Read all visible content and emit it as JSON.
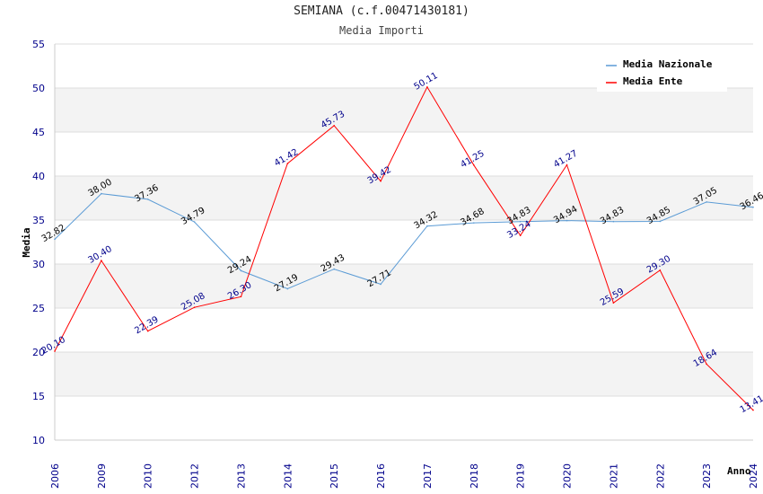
{
  "chart_data": {
    "type": "line",
    "title": "SEMIANA (c.f.00471430181)",
    "subtitle": "Media Importi",
    "xlabel": "Anno",
    "ylabel": "Media",
    "ylim": [
      10,
      55
    ],
    "yticks": [
      10,
      15,
      20,
      25,
      30,
      35,
      40,
      45,
      50,
      55
    ],
    "grid": true,
    "legend_position": "top-right",
    "categories": [
      "2006",
      "2009",
      "2010",
      "2012",
      "2013",
      "2014",
      "2015",
      "2016",
      "2017",
      "2018",
      "2019",
      "2020",
      "2021",
      "2022",
      "2023",
      "2024"
    ],
    "series": [
      {
        "name": "Media Nazionale",
        "color": "#5b9bd5",
        "values": [
          32.82,
          38.0,
          37.36,
          34.79,
          29.24,
          27.19,
          29.43,
          27.71,
          34.32,
          34.68,
          34.83,
          34.94,
          34.83,
          34.85,
          37.05,
          36.46
        ],
        "labels": [
          "32.82",
          "38.00",
          "37.36",
          "34.79",
          "29.24",
          "27.19",
          "29.43",
          "27.71",
          "34.32",
          "34.68",
          "34.83",
          "34.94",
          "34.83",
          "34.85",
          "37.05",
          "36.46"
        ]
      },
      {
        "name": "Media Ente",
        "color": "#ff0000",
        "values": [
          20.1,
          30.4,
          22.39,
          25.08,
          26.3,
          41.42,
          45.73,
          39.42,
          50.11,
          41.25,
          33.24,
          41.27,
          25.59,
          29.3,
          18.64,
          13.41
        ],
        "labels": [
          "20.10",
          "30.40",
          "22.39",
          "25.08",
          "26.30",
          "41.42",
          "45.73",
          "39.42",
          "50.11",
          "41.25",
          "33.24",
          "41.27",
          "25.59",
          "29.30",
          "18.64",
          "13.41"
        ]
      }
    ]
  }
}
